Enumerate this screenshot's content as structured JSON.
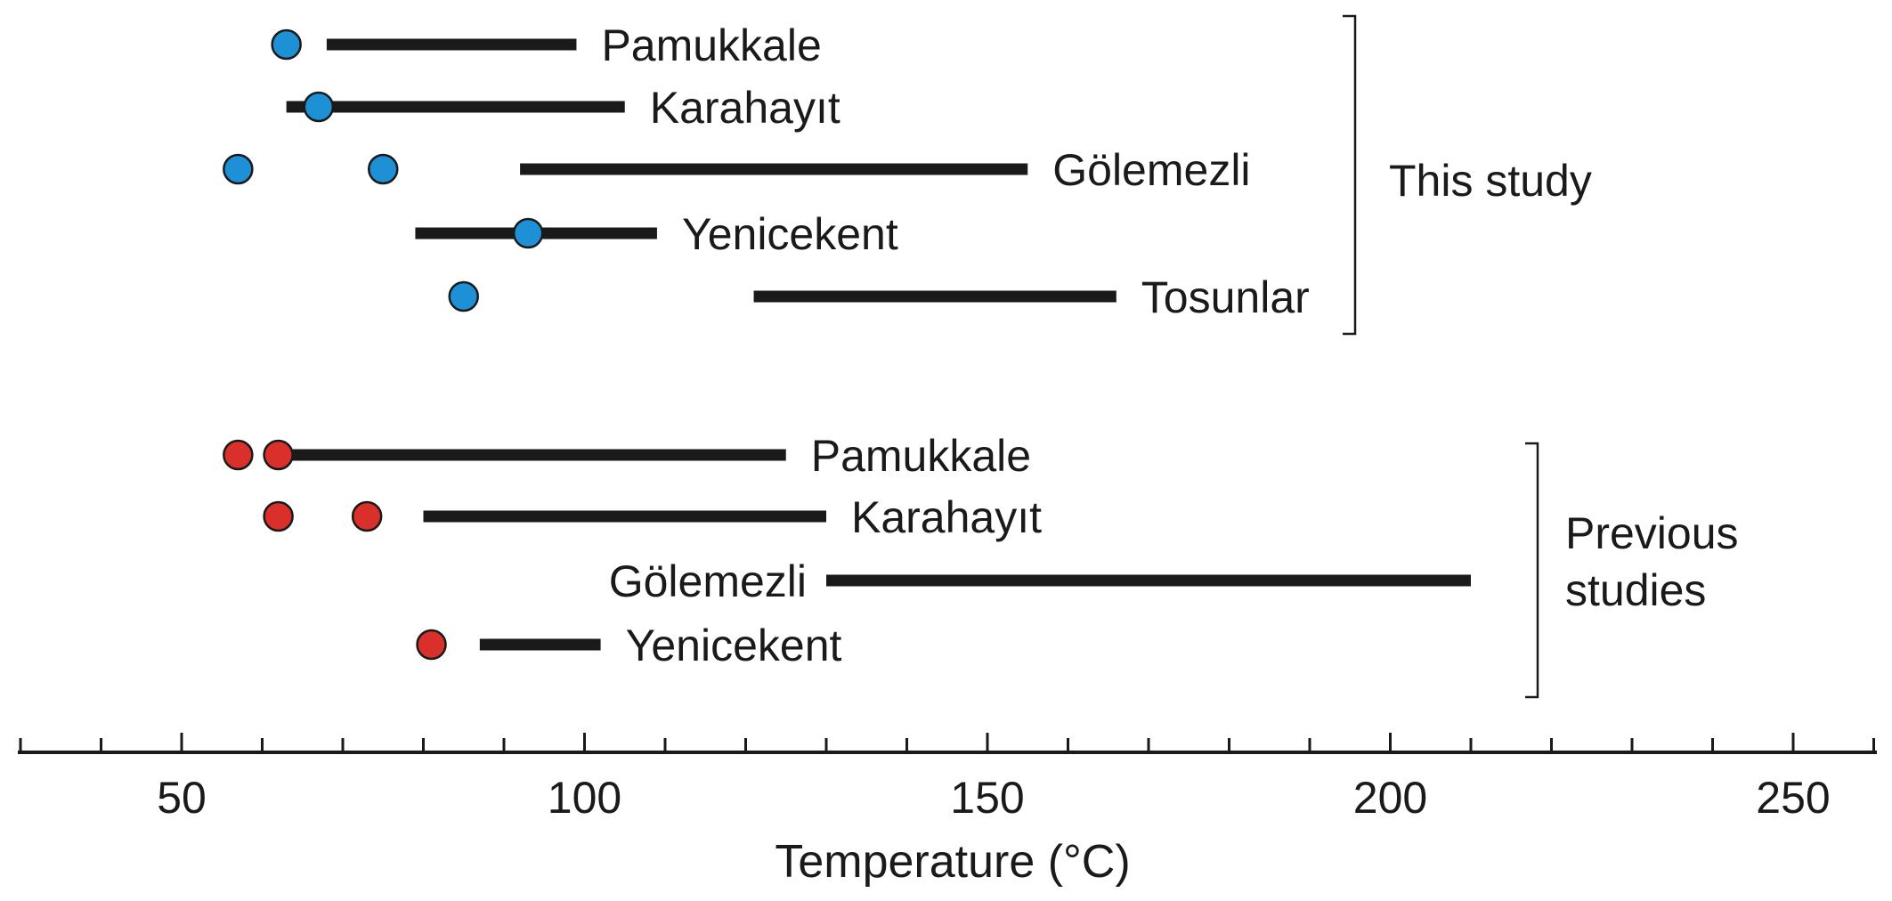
{
  "chart_data": {
    "type": "range",
    "xlabel": "Temperature (°C)",
    "xlim": [
      30,
      262
    ],
    "x_ticks_major": [
      50,
      100,
      150,
      200,
      250
    ],
    "x_ticks_minor_step": 10,
    "groups": [
      {
        "name": "This study",
        "point_color": "#1e90d6",
        "rows": [
          {
            "label": "Pamukkale",
            "range": [
              68,
              99
            ],
            "points": [
              63
            ],
            "label_side": "right"
          },
          {
            "label": "Karahayıt",
            "range": [
              63,
              105
            ],
            "points": [
              67
            ],
            "label_side": "right"
          },
          {
            "label": "Gölemezli",
            "range": [
              92,
              155
            ],
            "points": [
              57,
              75
            ],
            "label_side": "right"
          },
          {
            "label": "Yenicekent",
            "range": [
              79,
              109
            ],
            "points": [
              93
            ],
            "label_side": "right"
          },
          {
            "label": "Tosunlar",
            "range": [
              121,
              166
            ],
            "points": [
              85
            ],
            "label_side": "right"
          }
        ]
      },
      {
        "name": "Previous studies",
        "name_lines": [
          "Previous",
          "studies"
        ],
        "point_color": "#d9302c",
        "rows": [
          {
            "label": "Pamukkale",
            "range": [
              62,
              125
            ],
            "points": [
              57,
              62
            ],
            "label_side": "right"
          },
          {
            "label": "Karahayıt",
            "range": [
              80,
              130
            ],
            "points": [
              62,
              73
            ],
            "label_side": "right"
          },
          {
            "label": "Gölemezli",
            "range": [
              130,
              210
            ],
            "points": [],
            "label_side": "left"
          },
          {
            "label": "Yenicekent",
            "range": [
              87,
              102
            ],
            "points": [
              81
            ],
            "label_side": "right"
          }
        ]
      }
    ]
  }
}
